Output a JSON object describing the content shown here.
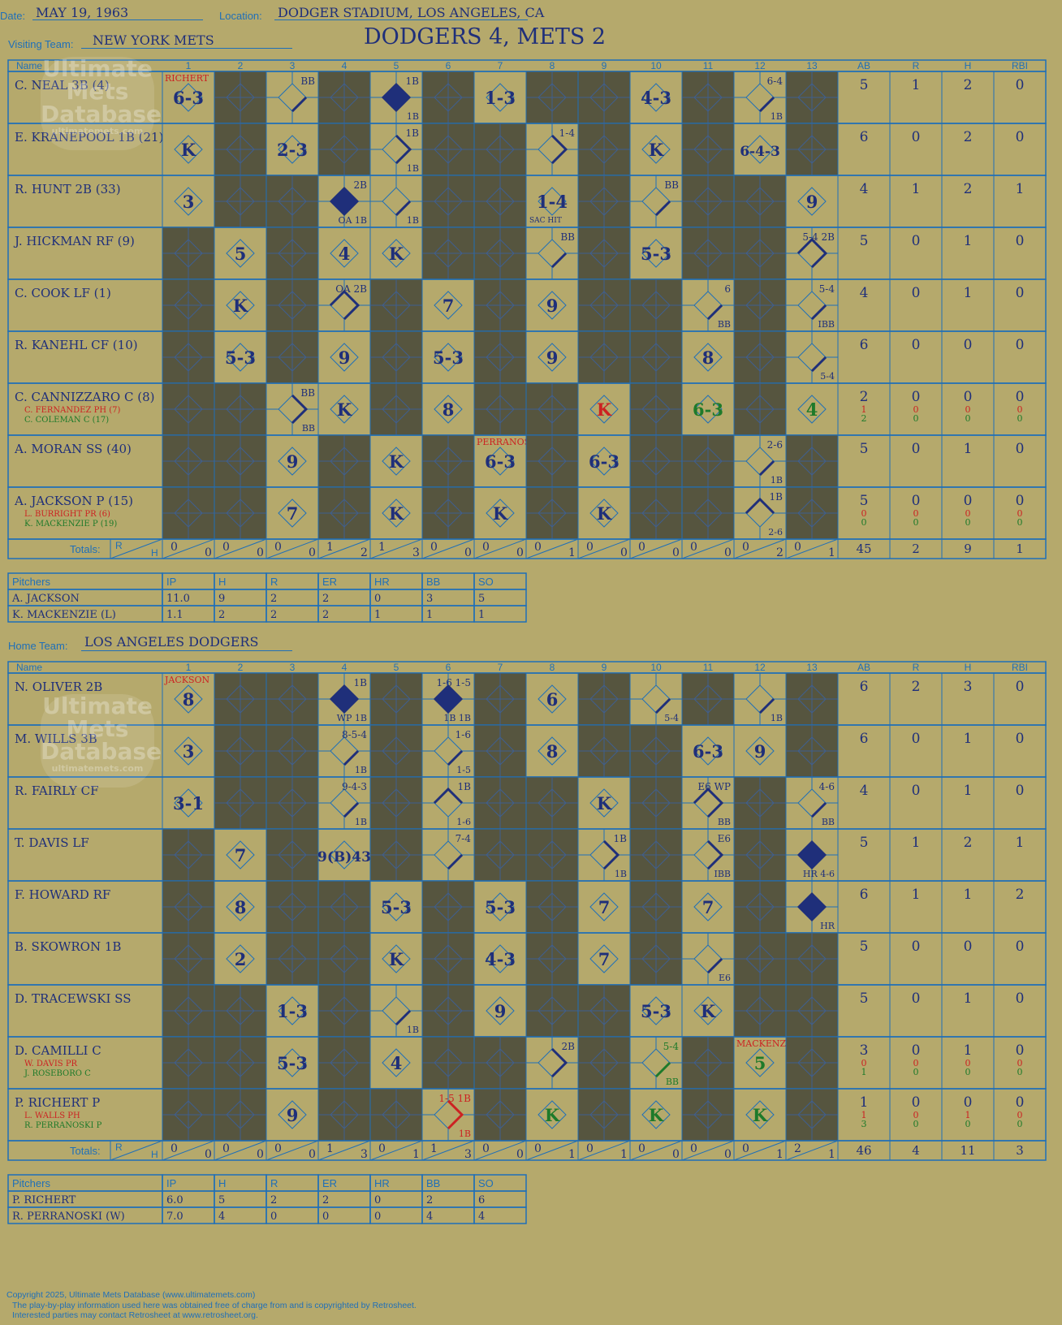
{
  "game": {
    "date_label": "Date:",
    "date": "MAY 19, 1963",
    "location_label": "Location:",
    "location": "DODGER STADIUM, LOS ANGELES, CA",
    "visiting_label": "Visiting Team:",
    "visiting_team": "NEW YORK METS",
    "home_label": "Home Team:",
    "home_team": "LOS ANGELES DODGERS",
    "result": "DODGERS 4, METS 2"
  },
  "watermark": {
    "line1": "Ultimate",
    "line2": "Mets",
    "line3": "Database",
    "line4": "ultimatemets.com"
  },
  "colors": {
    "background": "#b5a96c",
    "grid": "#1f6fb8",
    "dark_cell": "#56553f",
    "ink": "#1f2f7a",
    "red_ink": "#cc2222",
    "green_ink": "#1e7a2a"
  },
  "header": {
    "name": "Name",
    "innings": [
      "1",
      "2",
      "3",
      "4",
      "5",
      "6",
      "7",
      "8",
      "9",
      "10",
      "11",
      "12",
      "13"
    ],
    "stats": [
      "AB",
      "R",
      "H",
      "RBI"
    ]
  },
  "totals_label": "Totals:",
  "rh_r": "R",
  "rh_h": "H",
  "pitch_headers": [
    "Pitchers",
    "IP",
    "H",
    "R",
    "ER",
    "HR",
    "BB",
    "SO"
  ],
  "visitors": {
    "players": [
      {
        "name": "C. NEAL 3B (4)",
        "subs": [],
        "stats": [
          [
            "5"
          ],
          [
            "1"
          ],
          [
            "2"
          ],
          [
            "0"
          ]
        ]
      },
      {
        "name": "E. KRANEPOOL 1B (21)",
        "subs": [],
        "stats": [
          [
            "6"
          ],
          [
            "0"
          ],
          [
            "2"
          ],
          [
            "0"
          ]
        ]
      },
      {
        "name": "R. HUNT 2B (33)",
        "subs": [],
        "stats": [
          [
            "4"
          ],
          [
            "1"
          ],
          [
            "2"
          ],
          [
            "1"
          ]
        ]
      },
      {
        "name": "J. HICKMAN RF (9)",
        "subs": [],
        "stats": [
          [
            "5"
          ],
          [
            "0"
          ],
          [
            "1"
          ],
          [
            "0"
          ]
        ]
      },
      {
        "name": "C. COOK LF (1)",
        "subs": [],
        "stats": [
          [
            "4"
          ],
          [
            "0"
          ],
          [
            "1"
          ],
          [
            "0"
          ]
        ]
      },
      {
        "name": "R. KANEHL CF (10)",
        "subs": [],
        "stats": [
          [
            "6"
          ],
          [
            "0"
          ],
          [
            "0"
          ],
          [
            "0"
          ]
        ]
      },
      {
        "name": "C. CANNIZZARO C (8)",
        "subs": [
          "C. FERNANDEZ PH (7)",
          "C. COLEMAN C (17)"
        ],
        "stats": [
          [
            "2",
            "1",
            "2"
          ],
          [
            "0",
            "0",
            "0"
          ],
          [
            "0",
            "0",
            "0"
          ],
          [
            "0",
            "0",
            "0"
          ]
        ]
      },
      {
        "name": "A. MORAN SS (40)",
        "subs": [],
        "stats": [
          [
            "5"
          ],
          [
            "0"
          ],
          [
            "1"
          ],
          [
            "0"
          ]
        ]
      },
      {
        "name": "A. JACKSON P (15)",
        "subs": [
          "L. BURRIGHT PR (6)",
          "K. MACKENZIE P (19)"
        ],
        "stats": [
          [
            "5",
            "0",
            "0"
          ],
          [
            "0",
            "0",
            "0"
          ],
          [
            "0",
            "0",
            "0"
          ],
          [
            "0",
            "0",
            "0"
          ]
        ]
      }
    ],
    "cells": [
      [
        {
          "t": "6-3",
          "tag": "RICHERT"
        },
        null,
        {
          "b": 1,
          "n": "BB"
        },
        null,
        {
          "s": 1,
          "n": "1B",
          "m": "1B"
        },
        null,
        {
          "t": "1-3"
        },
        null,
        null,
        {
          "t": "4-3"
        },
        null,
        {
          "b": 1,
          "n": "6-4",
          "m": "1B"
        },
        null
      ],
      [
        {
          "t": "K"
        },
        null,
        {
          "t": "2-3"
        },
        null,
        {
          "b": 2,
          "n": "1B",
          "m": "1B"
        },
        null,
        null,
        {
          "b": 2,
          "n": "1-4"
        },
        null,
        {
          "t": "K"
        },
        null,
        {
          "t": "6-4-3"
        },
        null
      ],
      [
        {
          "t": "3"
        },
        null,
        null,
        {
          "s": 1,
          "n": "2B",
          "m": "OA  1B"
        },
        {
          "b": 1,
          "n": "",
          "m": "1B"
        },
        null,
        null,
        {
          "t": "1-4",
          "n": "SAC HIT"
        },
        null,
        {
          "b": 1,
          "n": "BB"
        },
        null,
        null,
        {
          "t": "9"
        }
      ],
      [
        null,
        {
          "t": "5"
        },
        null,
        {
          "t": "4"
        },
        {
          "t": "K"
        },
        null,
        null,
        {
          "b": 1,
          "n": "BB"
        },
        null,
        {
          "t": "5-3"
        },
        null,
        null,
        {
          "b": 3,
          "n": "5-4  2B"
        }
      ],
      [
        null,
        {
          "t": "K"
        },
        null,
        {
          "b": 3,
          "n": "OA 2B"
        },
        null,
        {
          "t": "7"
        },
        null,
        {
          "t": "9"
        },
        null,
        null,
        {
          "b": 1,
          "n": "6",
          "m": "BB"
        },
        null,
        {
          "b": 1,
          "n": "5-4",
          "m": "IBB"
        }
      ],
      [
        null,
        {
          "t": "5-3"
        },
        null,
        {
          "t": "9"
        },
        null,
        {
          "t": "5-3"
        },
        null,
        {
          "t": "9"
        },
        null,
        null,
        {
          "t": "8"
        },
        null,
        {
          "b": 1,
          "n": "",
          "m": "5-4"
        }
      ],
      [
        null,
        null,
        {
          "b": 2,
          "n": "BB",
          "m": "BB"
        },
        {
          "t": "K"
        },
        null,
        {
          "t": "8"
        },
        null,
        null,
        {
          "t": "K",
          "c": "red"
        },
        null,
        {
          "t": "6-3",
          "c": "green"
        },
        null,
        {
          "t": "4",
          "c": "green"
        }
      ],
      [
        null,
        null,
        {
          "t": "9"
        },
        null,
        {
          "t": "K"
        },
        null,
        {
          "t": "6-3",
          "tag": "PERRANOSKI"
        },
        null,
        {
          "t": "6-3"
        },
        null,
        null,
        {
          "b": 1,
          "n": "2-6",
          "m": "1B"
        },
        null
      ],
      [
        null,
        null,
        {
          "t": "7"
        },
        null,
        {
          "t": "K"
        },
        null,
        {
          "t": "K"
        },
        null,
        {
          "t": "K"
        },
        null,
        null,
        {
          "b": 4,
          "n": "1B",
          "m": "2-6"
        },
        null
      ]
    ],
    "totals": [
      [
        "0",
        "0"
      ],
      [
        "0",
        "0"
      ],
      [
        "0",
        "0"
      ],
      [
        "1",
        "2"
      ],
      [
        "1",
        "3"
      ],
      [
        "0",
        "0"
      ],
      [
        "0",
        "0"
      ],
      [
        "0",
        "1"
      ],
      [
        "0",
        "0"
      ],
      [
        "0",
        "0"
      ],
      [
        "0",
        "0"
      ],
      [
        "0",
        "2"
      ],
      [
        "0",
        "1"
      ]
    ],
    "totals_stats": [
      "45",
      "2",
      "9",
      "1"
    ],
    "pitchers": [
      [
        "A. JACKSON",
        "11.0",
        "9",
        "2",
        "2",
        "0",
        "3",
        "5"
      ],
      [
        "K. MACKENZIE (L)",
        "1.1",
        "2",
        "2",
        "2",
        "1",
        "1",
        "1"
      ]
    ]
  },
  "home": {
    "players": [
      {
        "name": "N. OLIVER 2B",
        "subs": [],
        "stats": [
          [
            "6"
          ],
          [
            "2"
          ],
          [
            "3"
          ],
          [
            "0"
          ]
        ]
      },
      {
        "name": "M. WILLS 3B",
        "subs": [],
        "stats": [
          [
            "6"
          ],
          [
            "0"
          ],
          [
            "1"
          ],
          [
            "0"
          ]
        ]
      },
      {
        "name": "R. FAIRLY CF",
        "subs": [],
        "stats": [
          [
            "4"
          ],
          [
            "0"
          ],
          [
            "1"
          ],
          [
            "0"
          ]
        ]
      },
      {
        "name": "T. DAVIS LF",
        "subs": [],
        "stats": [
          [
            "5"
          ],
          [
            "1"
          ],
          [
            "2"
          ],
          [
            "1"
          ]
        ]
      },
      {
        "name": "F. HOWARD RF",
        "subs": [],
        "stats": [
          [
            "6"
          ],
          [
            "1"
          ],
          [
            "1"
          ],
          [
            "2"
          ]
        ]
      },
      {
        "name": "B. SKOWRON 1B",
        "subs": [],
        "stats": [
          [
            "5"
          ],
          [
            "0"
          ],
          [
            "0"
          ],
          [
            "0"
          ]
        ]
      },
      {
        "name": "D. TRACEWSKI SS",
        "subs": [],
        "stats": [
          [
            "5"
          ],
          [
            "0"
          ],
          [
            "1"
          ],
          [
            "0"
          ]
        ]
      },
      {
        "name": "D. CAMILLI C",
        "subs": [
          "W. DAVIS PR",
          "J. ROSEBORO C"
        ],
        "stats": [
          [
            "3",
            "0",
            "1"
          ],
          [
            "0",
            "0",
            "0"
          ],
          [
            "1",
            "0",
            "0"
          ],
          [
            "0",
            "0",
            "0"
          ]
        ]
      },
      {
        "name": "P. RICHERT P",
        "subs": [
          "L. WALLS PH",
          "R. PERRANOSKI P"
        ],
        "stats": [
          [
            "1",
            "1",
            "3"
          ],
          [
            "0",
            "0",
            "0"
          ],
          [
            "0",
            "1",
            "0"
          ],
          [
            "0",
            "0",
            "0"
          ]
        ]
      }
    ],
    "cells": [
      [
        {
          "t": "8",
          "tag": "JACKSON"
        },
        null,
        null,
        {
          "s": 1,
          "n": "1B",
          "m": "WP  1B"
        },
        null,
        {
          "s": 1,
          "n": "1-6 1-5",
          "m": "1B  1B"
        },
        null,
        {
          "t": "6"
        },
        null,
        {
          "b": 1,
          "n": "",
          "m": "5-4"
        },
        null,
        {
          "b": 1,
          "n": "",
          "m": "1B"
        },
        null
      ],
      [
        {
          "t": "3"
        },
        null,
        null,
        {
          "b": 1,
          "n": "8-5-4",
          "m": "1B"
        },
        null,
        {
          "b": 1,
          "n": "1-6",
          "m": "1-5"
        },
        null,
        {
          "t": "8"
        },
        null,
        null,
        {
          "t": "6-3"
        },
        {
          "t": "9"
        },
        null
      ],
      [
        {
          "t": "3-1"
        },
        null,
        null,
        {
          "b": 1,
          "n": "9-4-3",
          "m": "1B"
        },
        null,
        {
          "b": 4,
          "n": "1B",
          "m": "1-6"
        },
        null,
        null,
        {
          "t": "K"
        },
        null,
        {
          "b": 3,
          "n": "E6  WP",
          "m": "BB"
        },
        null,
        {
          "b": 1,
          "n": "4-6",
          "m": "BB"
        }
      ],
      [
        null,
        {
          "t": "7"
        },
        null,
        {
          "t": "9(B)43"
        },
        null,
        {
          "b": 1,
          "n": "7-4"
        },
        null,
        null,
        {
          "b": 2,
          "n": "1B",
          "m": "1B"
        },
        null,
        {
          "b": 2,
          "n": "E6",
          "m": "IBB"
        },
        null,
        {
          "s": 1,
          "n": "",
          "m": "HR  4-6"
        }
      ],
      [
        null,
        {
          "t": "8"
        },
        null,
        null,
        {
          "t": "5-3"
        },
        null,
        {
          "t": "5-3"
        },
        null,
        {
          "t": "7"
        },
        null,
        {
          "t": "7"
        },
        null,
        {
          "s": 1,
          "n": "",
          "m": "HR"
        }
      ],
      [
        null,
        {
          "t": "2"
        },
        null,
        null,
        {
          "t": "K"
        },
        null,
        {
          "t": "4-3"
        },
        null,
        {
          "t": "7"
        },
        null,
        {
          "b": 1,
          "n": "",
          "m": "E6"
        },
        null,
        null
      ],
      [
        null,
        null,
        {
          "t": "1-3"
        },
        null,
        {
          "b": 1,
          "n": "",
          "m": "1B"
        },
        null,
        {
          "t": "9"
        },
        null,
        null,
        {
          "t": "5-3"
        },
        {
          "t": "K"
        },
        null,
        null
      ],
      [
        null,
        null,
        {
          "t": "5-3"
        },
        null,
        {
          "t": "4"
        },
        null,
        null,
        {
          "b": 2,
          "n": "2B"
        },
        null,
        {
          "b": 1,
          "n": "5-4",
          "m": "BB",
          "c": "green"
        },
        null,
        {
          "t": "5",
          "tag": "MACKENZIE",
          "c": "green"
        },
        null
      ],
      [
        null,
        null,
        {
          "t": "9"
        },
        null,
        null,
        {
          "b": 2,
          "n": "1-5 1B",
          "m": "1B",
          "c": "red"
        },
        null,
        {
          "t": "K",
          "c": "green"
        },
        null,
        {
          "t": "K",
          "c": "green"
        },
        null,
        {
          "t": "K",
          "c": "green"
        },
        null
      ]
    ],
    "totals": [
      [
        "0",
        "0"
      ],
      [
        "0",
        "0"
      ],
      [
        "0",
        "0"
      ],
      [
        "1",
        "3"
      ],
      [
        "0",
        "1"
      ],
      [
        "1",
        "3"
      ],
      [
        "0",
        "0"
      ],
      [
        "0",
        "1"
      ],
      [
        "0",
        "1"
      ],
      [
        "0",
        "0"
      ],
      [
        "0",
        "0"
      ],
      [
        "0",
        "1"
      ],
      [
        "2",
        "1"
      ]
    ],
    "totals_stats": [
      "46",
      "4",
      "11",
      "3"
    ],
    "pitchers": [
      [
        "P. RICHERT",
        "6.0",
        "5",
        "2",
        "2",
        "0",
        "2",
        "6"
      ],
      [
        "R. PERRANOSKI (W)",
        "7.0",
        "4",
        "0",
        "0",
        "0",
        "4",
        "4"
      ]
    ]
  },
  "copyright": {
    "line1": "Copyright 2025, Ultimate Mets Database (www.ultimatemets.com)",
    "line2": "The play-by-play information used here was obtained free of charge from and is copyrighted by Retrosheet.",
    "line3": "Interested parties may contact Retrosheet at www.retrosheet.org."
  }
}
